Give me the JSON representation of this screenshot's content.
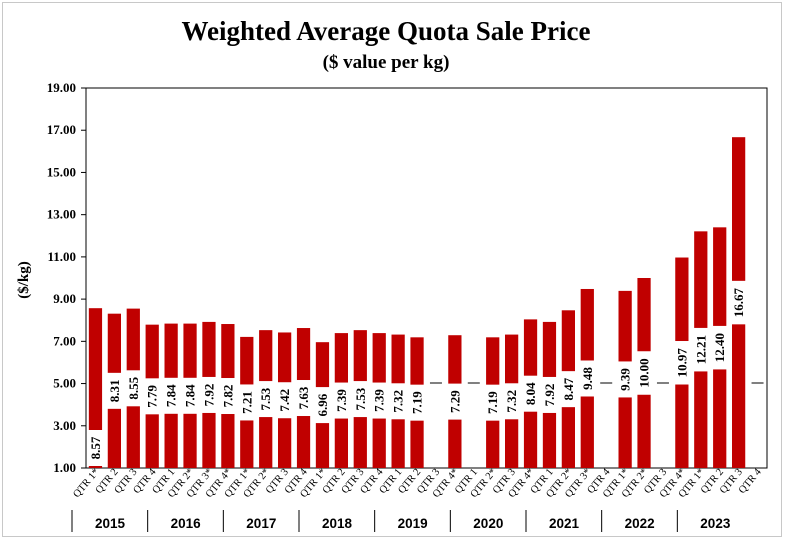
{
  "chart_data": {
    "type": "bar",
    "title": "Weighted Average Quota Sale Price",
    "subtitle": "($ value per kg)",
    "ylabel": "($/kg)",
    "ylim": [
      1.0,
      19.0
    ],
    "yticks": [
      "1.00",
      "3.00",
      "5.00",
      "7.00",
      "9.00",
      "11.00",
      "13.00",
      "15.00",
      "17.00",
      "19.00"
    ],
    "bar_color": "#c00000",
    "categories": [
      "QTR 1*",
      "QTR 2",
      "QTR 3",
      "QTR 4",
      "QTR 1",
      "QTR 2*",
      "QTR 3*",
      "QTR 4*",
      "QTR 1*",
      "QTR 2*",
      "QTR 3",
      "QTR 4",
      "QTR 1*",
      "QTR 2",
      "QTR 3",
      "QTR 4",
      "QTR 1",
      "QTR 2",
      "QTR 3",
      "QTR 4*",
      "QTR 1",
      "QTR 2*",
      "QTR 3",
      "QTR 4*",
      "QTR 1",
      "QTR 2*",
      "QTR 3*",
      "QTR 4",
      "QTR 1*",
      "QTR 2*",
      "QTR 3",
      "QTR 4*",
      "QTR 1*",
      "QTR 2",
      "QTR 3",
      "QTR 4"
    ],
    "values": [
      8.57,
      8.31,
      8.55,
      7.79,
      7.84,
      7.84,
      7.92,
      7.82,
      7.21,
      7.53,
      7.42,
      7.63,
      6.96,
      7.39,
      7.53,
      7.39,
      7.32,
      7.19,
      null,
      7.29,
      null,
      7.19,
      7.32,
      8.04,
      7.92,
      8.47,
      9.48,
      null,
      9.39,
      10.0,
      null,
      10.97,
      12.21,
      12.4,
      16.67,
      null
    ],
    "data_labels": [
      "8.57",
      "8.31",
      "8.55",
      "7.79",
      "7.84",
      "7.84",
      "7.92",
      "7.82",
      "7.21",
      "7.53",
      "7.42",
      "7.63",
      "6.96",
      "7.39",
      "7.53",
      "7.39",
      "7.32",
      "7.19",
      "",
      "7.29",
      "",
      "7.19",
      "7.32",
      "8.04",
      "7.92",
      "8.47",
      "9.48",
      "",
      "9.39",
      "10.00",
      "",
      "10.97",
      "12.21",
      "12.40",
      "16.67",
      ""
    ],
    "years": [
      "2015",
      "2016",
      "2017",
      "2018",
      "2019",
      "2020",
      "2021",
      "2022",
      "2023"
    ],
    "grid": false,
    "legend": "none"
  }
}
